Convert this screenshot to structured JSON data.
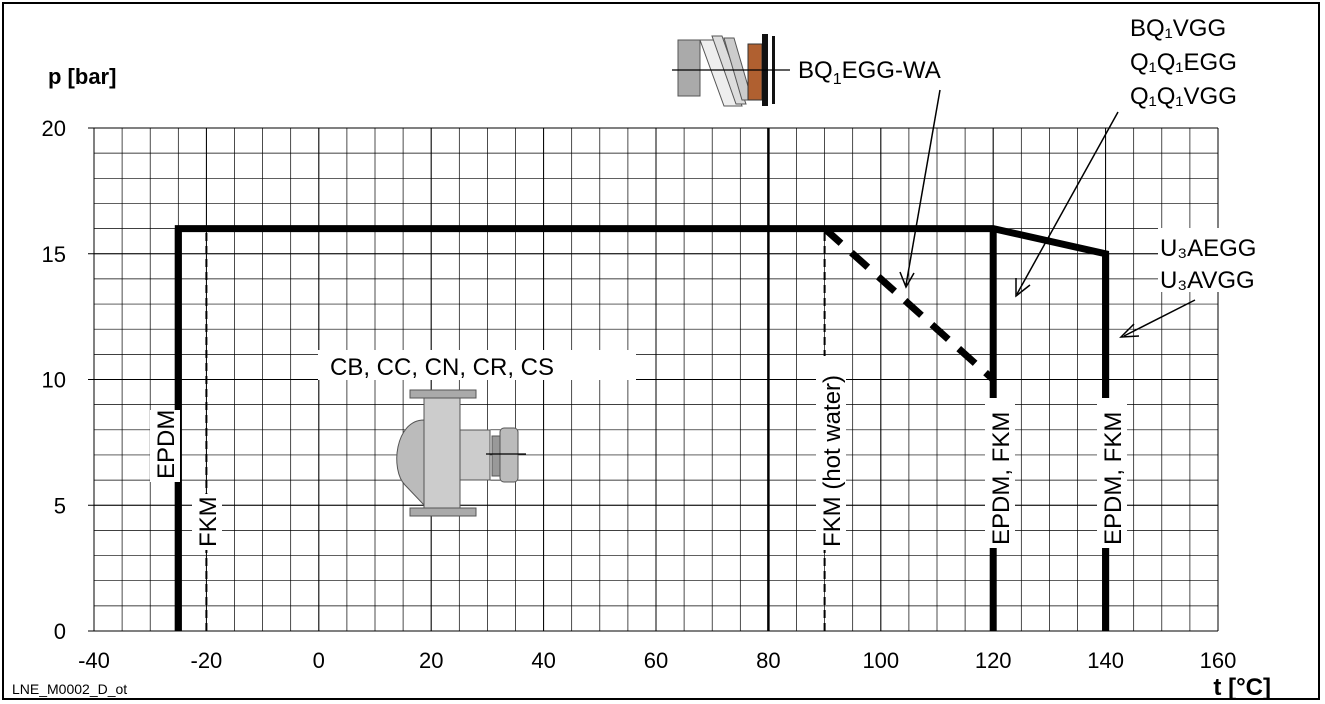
{
  "chart_data": {
    "type": "line",
    "ylabel": "p [bar]",
    "xlabel": "t [°C]",
    "footer": "LNE_M0002_D_ot",
    "xlim": [
      -40,
      160
    ],
    "ylim": [
      0,
      20
    ],
    "x_ticks": [
      -40,
      -20,
      0,
      20,
      40,
      60,
      80,
      100,
      120,
      140,
      160
    ],
    "y_ticks": [
      0,
      5,
      10,
      15,
      20
    ],
    "grid": true,
    "minor_grid": {
      "x_step": 5,
      "y_step": 1
    },
    "envelope": {
      "name": "CB, CC, CN, CR, CS",
      "points": [
        [
          -25,
          0
        ],
        [
          -25,
          16
        ],
        [
          120,
          16
        ],
        [
          140,
          15
        ],
        [
          140,
          0
        ]
      ]
    },
    "series": [
      {
        "name": "EPDM",
        "x": [
          -25,
          -25
        ],
        "y": [
          0,
          16
        ],
        "style": "thick"
      },
      {
        "name": "FKM",
        "x": [
          -20,
          -20
        ],
        "y": [
          0,
          16
        ],
        "style": "dashed"
      },
      {
        "name": "FKM (hot water)",
        "x": [
          90,
          90
        ],
        "y": [
          0,
          16
        ],
        "style": "dashed"
      },
      {
        "name": "EPDM, FKM",
        "x": [
          120,
          120
        ],
        "y": [
          0,
          16
        ],
        "style": "thick"
      },
      {
        "name": "EPDM, FKM",
        "x": [
          140,
          140
        ],
        "y": [
          0,
          15
        ],
        "style": "thick"
      },
      {
        "name": "BQ1EGG-WA",
        "x": [
          90,
          120
        ],
        "y": [
          16,
          10
        ],
        "style": "thick-dashed"
      },
      {
        "name": "80 °C line",
        "x": [
          80,
          80
        ],
        "y": [
          0,
          20
        ],
        "style": "thin-solid"
      }
    ],
    "annotations": {
      "bq1egg_wa": "BQ",
      "bq1egg_wa_sub": "1",
      "bq1egg_wa_rest": "EGG-WA",
      "bq1vgg": "BQ₁VGG",
      "q1q1egg": "Q₁Q₁EGG",
      "q1q1vgg": "Q₁Q₁VGG",
      "u3aegg": "U₃AEGG",
      "u3avgg": "U₃AVGG",
      "pump_family": "CB, CC, CN, CR, CS",
      "epdm": "EPDM",
      "fkm": "FKM",
      "fkm_hot": "FKM (hot water)",
      "epdm_fkm_120": "EPDM, FKM",
      "epdm_fkm_140": "EPDM, FKM"
    },
    "icons": [
      "mechanical-seal-icon",
      "pump-icon"
    ]
  }
}
